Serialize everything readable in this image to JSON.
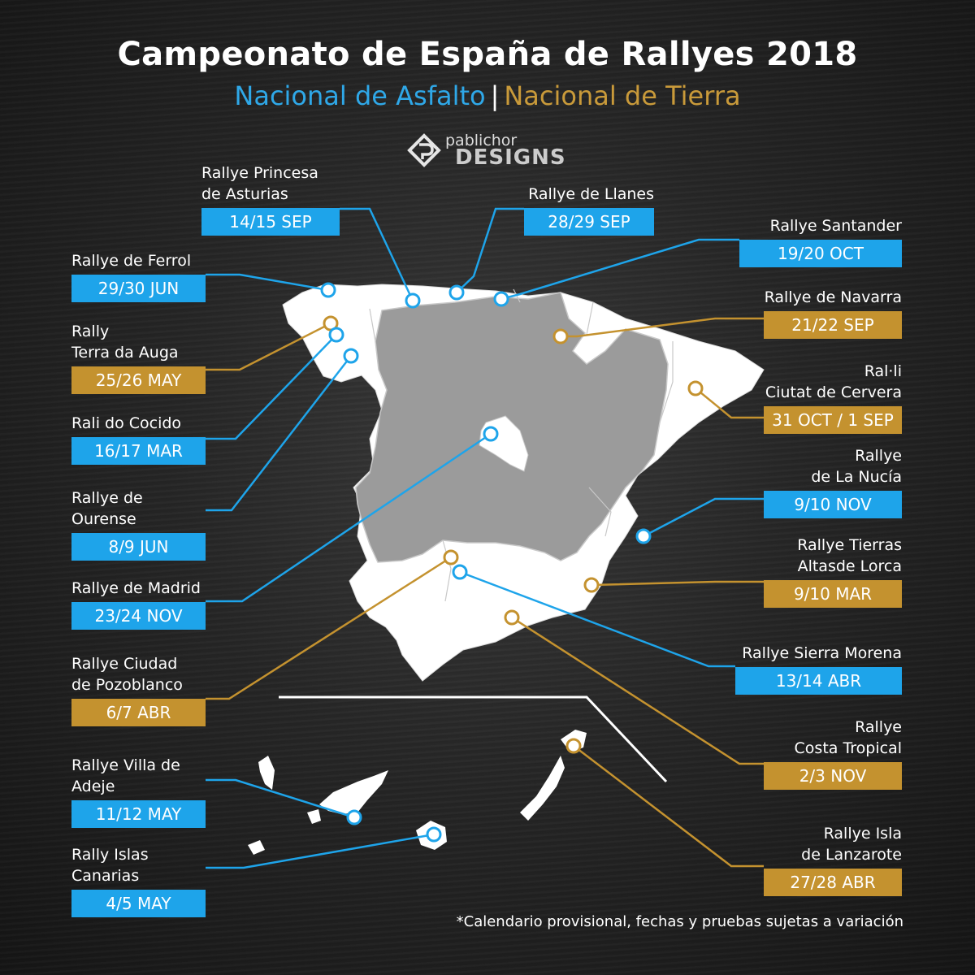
{
  "title": "Campeonato de España de Rallyes 2018",
  "subtitle": {
    "asfalto": "Nacional de Asfalto",
    "separator": "|",
    "tierra": "Nacional de Tierra"
  },
  "logo": {
    "top": "pablichor",
    "bottom": "DESIGNS"
  },
  "colors": {
    "asfalto": "#1ea4ea",
    "tierra": "#c4922f",
    "highlight_region": "#9b9b9b",
    "land": "#ffffff"
  },
  "rallies": [
    {
      "id": "princesa",
      "name": [
        "Rallye Princesa",
        "de Asturias"
      ],
      "date": "14/15 SEP",
      "type": "asfalto"
    },
    {
      "id": "llanes",
      "name": [
        "Rallye de Llanes"
      ],
      "date": "28/29 SEP",
      "type": "asfalto"
    },
    {
      "id": "santander",
      "name": [
        "Rallye Santander"
      ],
      "date": "19/20 OCT",
      "type": "asfalto"
    },
    {
      "id": "ferrol",
      "name": [
        "Rallye de Ferrol"
      ],
      "date": "29/30 JUN",
      "type": "asfalto"
    },
    {
      "id": "navarra",
      "name": [
        "Rallye de Navarra"
      ],
      "date": "21/22 SEP",
      "type": "tierra"
    },
    {
      "id": "terra",
      "name": [
        "Rally",
        "Terra da Auga"
      ],
      "date": "25/26 MAY",
      "type": "tierra"
    },
    {
      "id": "cervera",
      "name": [
        "Ral·li",
        "Ciutat de Cervera"
      ],
      "date": "31 OCT / 1 SEP",
      "type": "tierra"
    },
    {
      "id": "cocido",
      "name": [
        "Rali do Cocido"
      ],
      "date": "16/17 MAR",
      "type": "asfalto"
    },
    {
      "id": "nucia",
      "name": [
        "Rallye",
        "de La Nucía"
      ],
      "date": "9/10 NOV",
      "type": "asfalto"
    },
    {
      "id": "ourense",
      "name": [
        "Rallye de Ourense"
      ],
      "date": "8/9 JUN",
      "type": "asfalto"
    },
    {
      "id": "lorca",
      "name": [
        "Rallye Tierras",
        "Altasde Lorca"
      ],
      "date": "9/10 MAR",
      "type": "tierra"
    },
    {
      "id": "madrid",
      "name": [
        "Rallye de Madrid"
      ],
      "date": "23/24 NOV",
      "type": "asfalto"
    },
    {
      "id": "sierra",
      "name": [
        "Rallye Sierra Morena"
      ],
      "date": "13/14 ABR",
      "type": "asfalto"
    },
    {
      "id": "pozoblanco",
      "name": [
        "Rallye Ciudad",
        "de Pozoblanco"
      ],
      "date": "6/7 ABR",
      "type": "tierra"
    },
    {
      "id": "tropical",
      "name": [
        "Rallye",
        "Costa Tropical"
      ],
      "date": "2/3 NOV",
      "type": "tierra"
    },
    {
      "id": "adeje",
      "name": [
        "Rallye Villa de Adeje"
      ],
      "date": "11/12 MAY",
      "type": "asfalto"
    },
    {
      "id": "lanzarote",
      "name": [
        "Rallye Isla",
        "de Lanzarote"
      ],
      "date": "27/28 ABR",
      "type": "tierra"
    },
    {
      "id": "canarias",
      "name": [
        "Rally Islas Canarias"
      ],
      "date": "4/5 MAY",
      "type": "asfalto"
    }
  ],
  "footnote": "*Calendario provisional, fechas y pruebas sujetas a variación"
}
